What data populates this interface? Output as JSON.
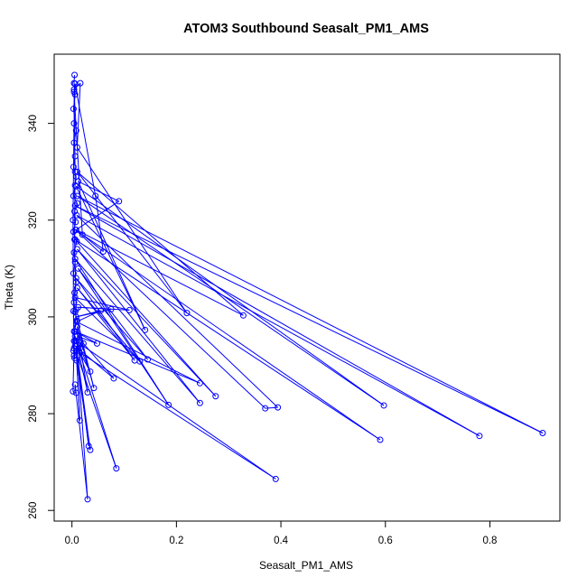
{
  "chart_data": {
    "type": "scatter",
    "title": "ATOM3 Southbound Seasalt_PM1_AMS",
    "xlabel": "Seasalt_PM1_AMS",
    "ylabel": "Theta (K)",
    "xlim": [
      -0.034,
      0.934
    ],
    "ylim": [
      257.8,
      354.3
    ],
    "xticks": [
      0.0,
      0.2,
      0.4,
      0.6,
      0.8
    ],
    "xtick_labels": [
      "0.0",
      "0.2",
      "0.4",
      "0.6",
      "0.8"
    ],
    "yticks": [
      260,
      280,
      300,
      320,
      340
    ],
    "ytick_labels": [
      "260",
      "280",
      "300",
      "320",
      "340"
    ],
    "grid": false,
    "legend": "none",
    "colors": {
      "series": "#0000ff",
      "axis": "#000000"
    },
    "series": [
      {
        "style": "line+points",
        "points": [
          [
            0.005,
            350.0
          ],
          [
            0.004,
            348.3
          ],
          [
            0.006,
            346.0
          ],
          [
            0.003,
            343.0
          ],
          [
            0.008,
            338.5
          ],
          [
            0.004,
            336.0
          ],
          [
            0.006,
            333.2
          ],
          [
            0.003,
            331.0
          ],
          [
            0.008,
            329.0
          ],
          [
            0.006,
            327.2
          ],
          [
            0.003,
            325.0
          ],
          [
            0.01,
            323.5
          ],
          [
            0.005,
            321.8
          ],
          [
            0.007,
            319.6
          ],
          [
            0.003,
            317.6
          ],
          [
            0.009,
            315.6
          ],
          [
            0.004,
            313.3
          ],
          [
            0.006,
            311.3
          ],
          [
            0.003,
            309.0
          ],
          [
            0.008,
            307.2
          ],
          [
            0.005,
            305.0
          ],
          [
            0.004,
            303.0
          ],
          [
            0.006,
            301.0
          ],
          [
            0.01,
            299.2
          ],
          [
            0.004,
            297.0
          ],
          [
            0.006,
            295.0
          ],
          [
            0.003,
            293.0
          ],
          [
            0.005,
            291.5
          ],
          [
            0.004,
            295.0
          ],
          [
            0.008,
            301.5
          ],
          [
            0.005,
            316.0
          ],
          [
            0.006,
            330.0
          ],
          [
            0.004,
            347.0
          ],
          [
            0.016,
            348.3
          ],
          [
            0.01,
            335.0
          ],
          [
            0.22,
            300.8
          ],
          [
            0.01,
            330.0
          ],
          [
            0.328,
            300.3
          ],
          [
            0.008,
            318.0
          ],
          [
            0.09,
            323.9
          ],
          [
            0.012,
            328.0
          ],
          [
            0.14,
            297.3
          ],
          [
            0.008,
            327.0
          ],
          [
            0.597,
            281.7
          ],
          [
            0.01,
            325.0
          ],
          [
            0.901,
            276.0
          ],
          [
            0.006,
            323.0
          ],
          [
            0.78,
            275.4
          ],
          [
            0.009,
            321.0
          ],
          [
            0.394,
            281.3
          ],
          [
            0.37,
            281.1
          ],
          [
            0.007,
            318.0
          ],
          [
            0.59,
            274.6
          ],
          [
            0.006,
            316.0
          ],
          [
            0.275,
            283.6
          ],
          [
            0.01,
            314.0
          ],
          [
            0.245,
            282.2
          ],
          [
            0.006,
            312.0
          ],
          [
            0.185,
            281.8
          ],
          [
            0.012,
            310.0
          ],
          [
            0.145,
            291.2
          ],
          [
            0.008,
            308.0
          ],
          [
            0.12,
            291.0
          ],
          [
            0.01,
            306.0
          ],
          [
            0.13,
            290.8
          ],
          [
            0.006,
            304.0
          ],
          [
            0.11,
            301.4
          ],
          [
            0.012,
            302.0
          ],
          [
            0.075,
            301.6
          ],
          [
            0.008,
            300.0
          ],
          [
            0.055,
            301.3
          ],
          [
            0.009,
            299.0
          ],
          [
            0.245,
            286.3
          ],
          [
            0.006,
            297.0
          ],
          [
            0.048,
            294.5
          ],
          [
            0.01,
            296.0
          ],
          [
            0.08,
            287.3
          ],
          [
            0.006,
            294.0
          ],
          [
            0.015,
            293.5
          ],
          [
            0.004,
            292.0
          ],
          [
            0.022,
            294.5
          ],
          [
            0.008,
            300.0
          ],
          [
            0.042,
            285.3
          ],
          [
            0.01,
            298.0
          ],
          [
            0.03,
            284.4
          ],
          [
            0.006,
            296.0
          ],
          [
            0.035,
            288.7
          ],
          [
            0.008,
            294.0
          ],
          [
            0.015,
            278.6
          ],
          [
            0.009,
            291.0
          ],
          [
            0.035,
            272.5
          ],
          [
            0.008,
            294.0
          ],
          [
            0.032,
            273.3
          ],
          [
            0.01,
            292.0
          ],
          [
            0.085,
            268.7
          ],
          [
            0.008,
            295.0
          ],
          [
            0.39,
            266.5
          ],
          [
            0.01,
            293.0
          ],
          [
            0.03,
            262.3
          ],
          [
            0.006,
            286.0
          ],
          [
            0.008,
            284.3
          ],
          [
            0.002,
            284.6
          ],
          [
            0.004,
            293.5
          ],
          [
            0.003,
            301.2
          ],
          [
            0.002,
            320.0
          ],
          [
            0.004,
            340.0
          ],
          [
            0.006,
            348.2
          ],
          [
            0.045,
            325.0
          ],
          [
            0.06,
            313.5
          ],
          [
            0.02,
            317.0
          ],
          [
            0.004,
            346.5
          ]
        ]
      }
    ]
  }
}
